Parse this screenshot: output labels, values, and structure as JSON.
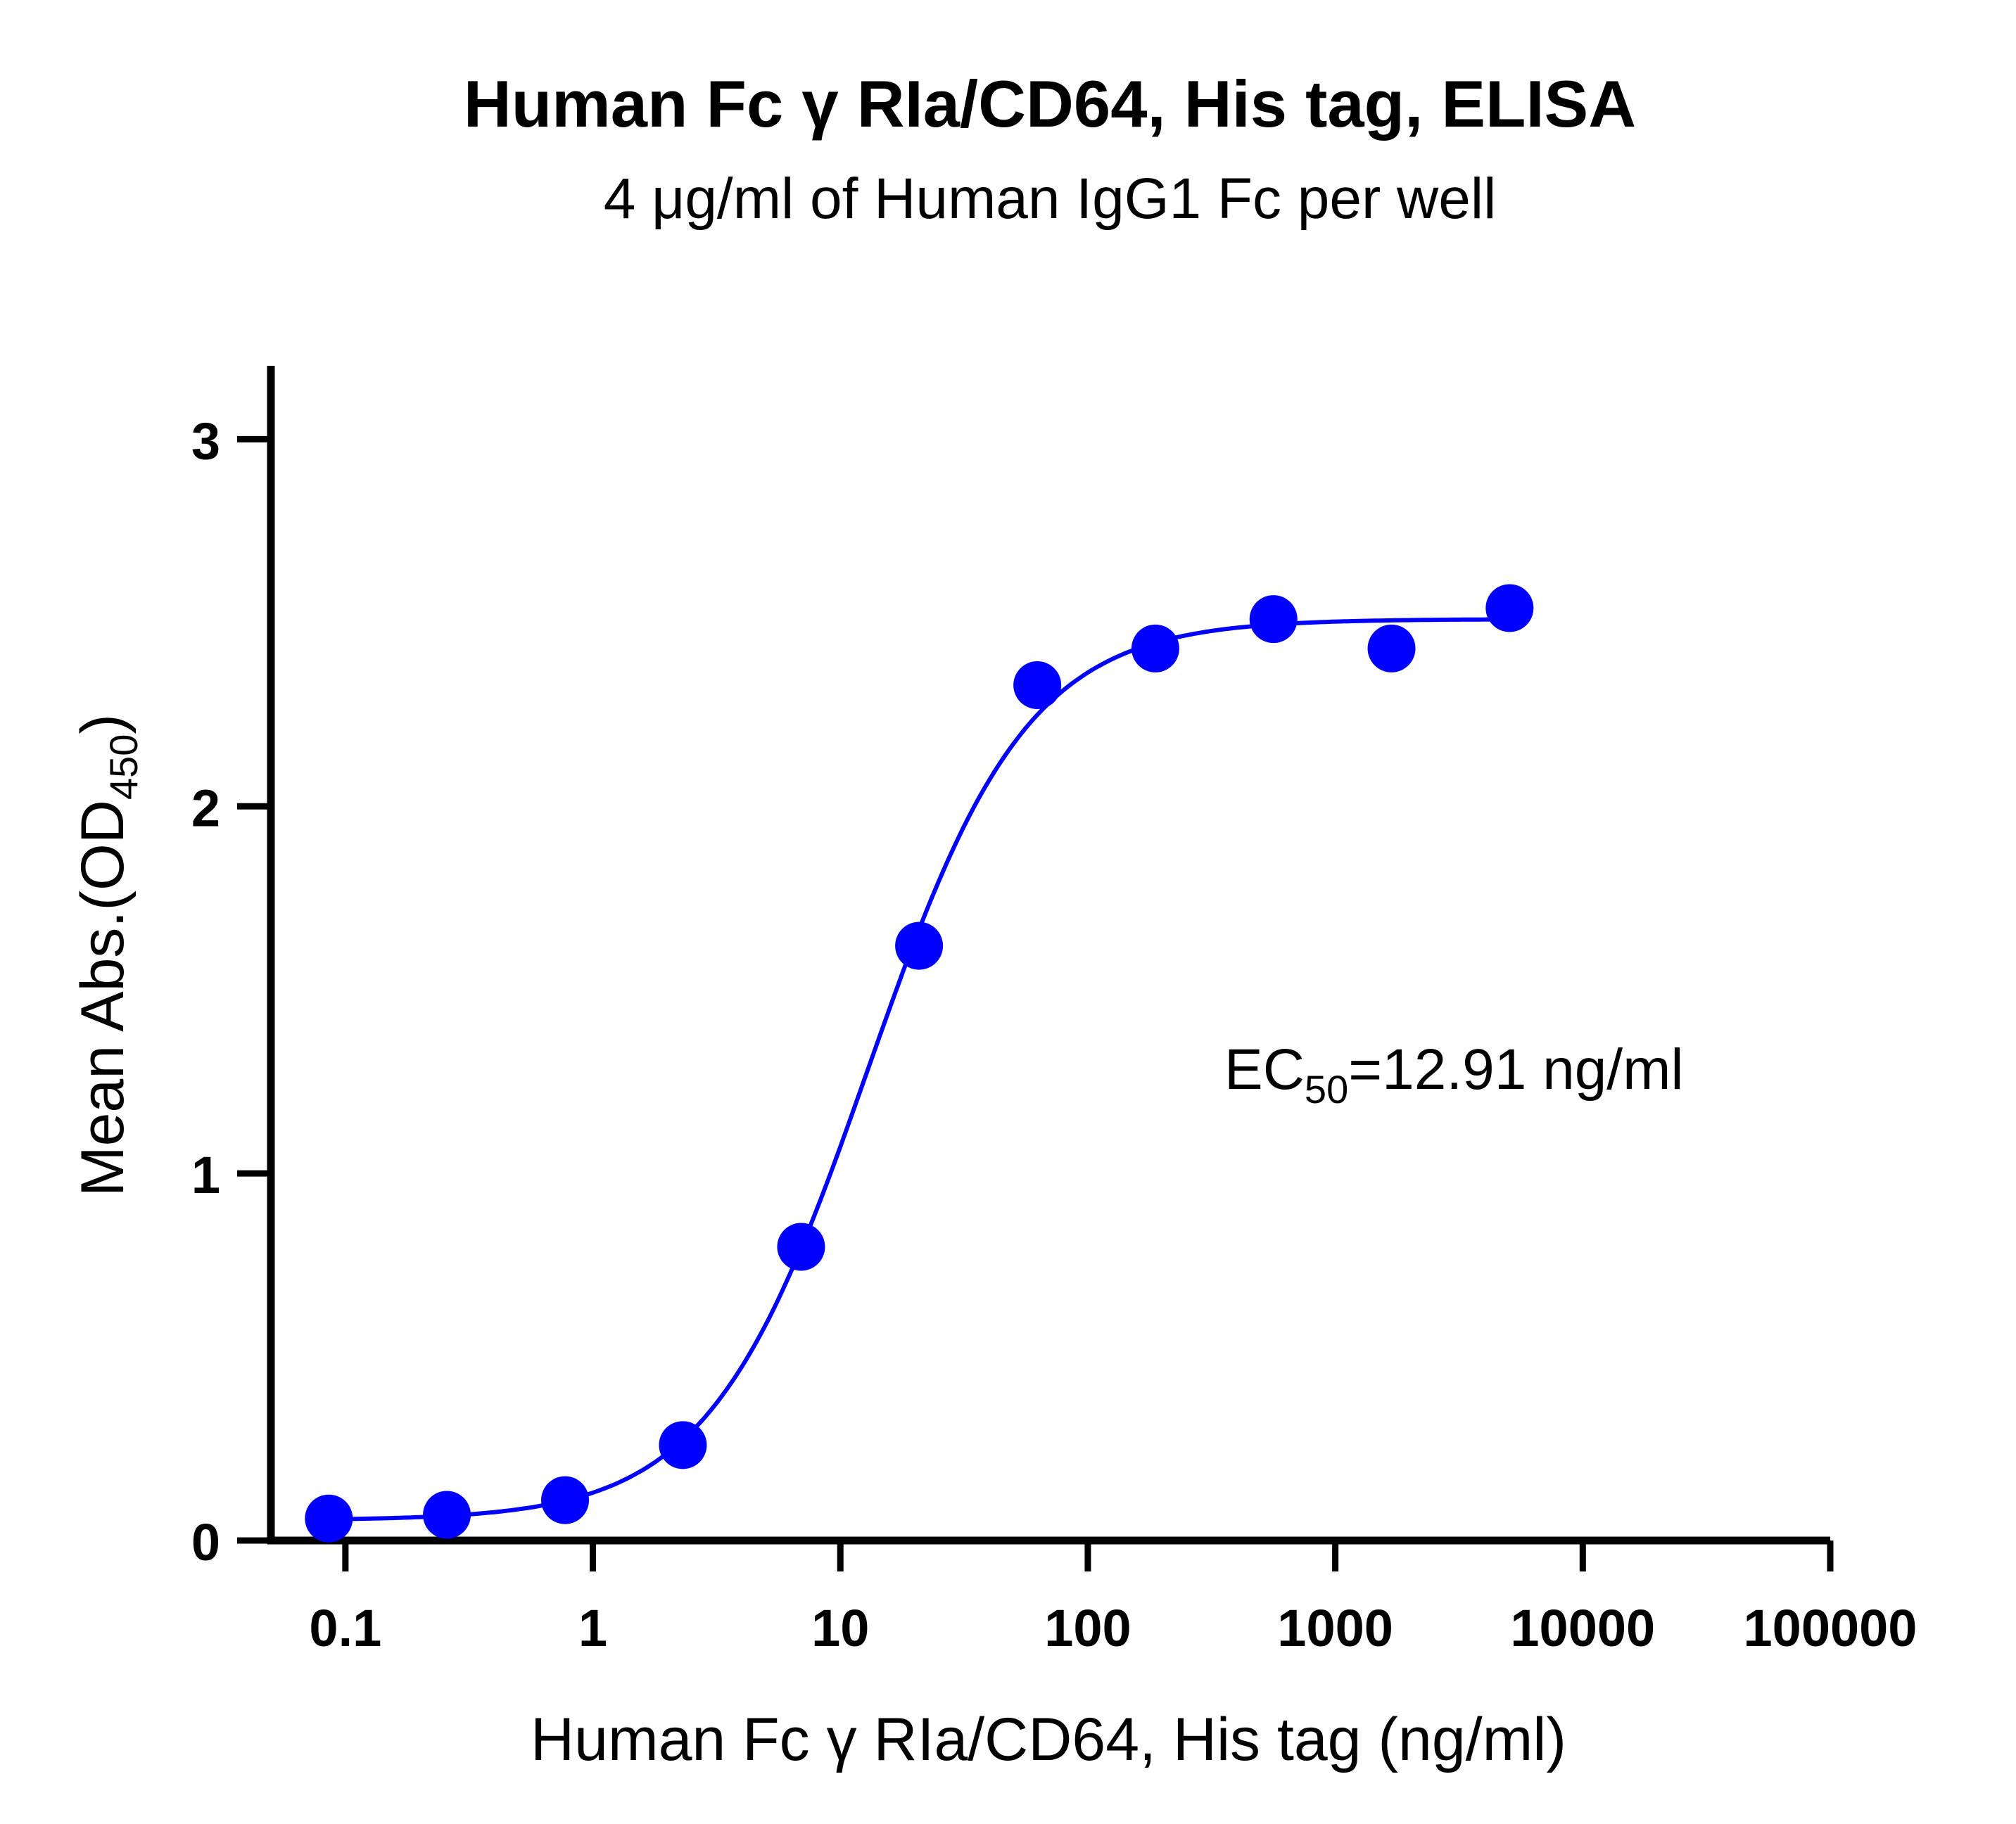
{
  "chart_data": {
    "type": "scatter",
    "title": "Human Fc γ RIa/CD64, His tag, ELISA",
    "subtitle": "4 μg/ml of Human IgG1 Fc per well",
    "xlabel": "Human Fc γ RIa/CD64, His tag (ng/ml)",
    "ylabel": {
      "main": "Mean Abs.(OD",
      "sub": "450",
      "close": ")"
    },
    "x_scale": "log",
    "xlim": [
      0.05,
      100000
    ],
    "ylim": [
      0,
      3.2
    ],
    "x_ticks": [
      {
        "value": 0.1,
        "label": "0.1"
      },
      {
        "value": 1,
        "label": "1"
      },
      {
        "value": 10,
        "label": "10"
      },
      {
        "value": 100,
        "label": "100"
      },
      {
        "value": 1000,
        "label": "1000"
      },
      {
        "value": 10000,
        "label": "10000"
      },
      {
        "value": 100000,
        "label": "100000"
      }
    ],
    "y_ticks": [
      {
        "value": 0,
        "label": "0"
      },
      {
        "value": 1,
        "label": "1"
      },
      {
        "value": 2,
        "label": "2"
      },
      {
        "value": 3,
        "label": "3"
      }
    ],
    "grid": false,
    "series": [
      {
        "color": "#0000ff",
        "x": [
          0.0857,
          0.257,
          0.772,
          2.31,
          6.94,
          20.8,
          62.5,
          187.5,
          562.5,
          1687.5,
          5062.5
        ],
        "y": [
          0.06,
          0.07,
          0.11,
          0.26,
          0.8,
          1.62,
          2.33,
          2.43,
          2.51,
          2.43,
          2.54
        ],
        "fit": {
          "model": "4PL",
          "bottom": 0.055,
          "top": 2.51,
          "ec50": 12.91,
          "hill": 1.35
        }
      }
    ],
    "annotation": {
      "prefix": "EC",
      "sub": "50",
      "suffix": "=12.91 ng/ml"
    }
  }
}
